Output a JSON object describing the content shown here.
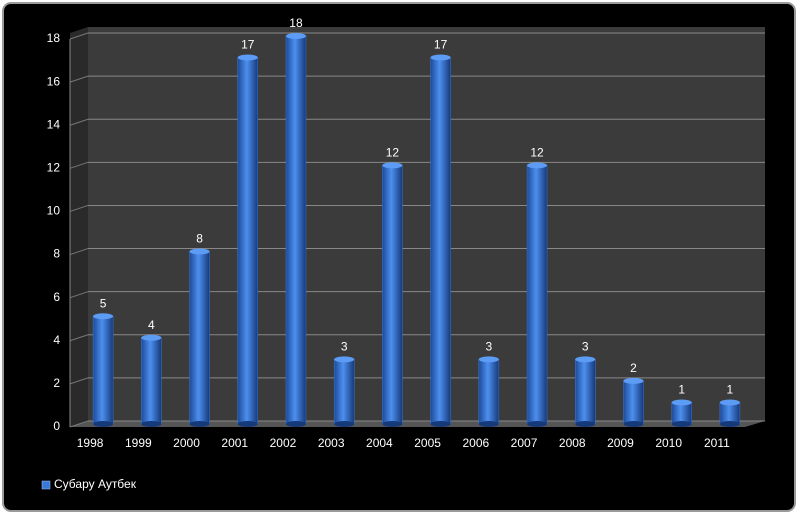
{
  "chart_data": {
    "type": "bar",
    "categories": [
      "1998",
      "1999",
      "2000",
      "2001",
      "2002",
      "2003",
      "2004",
      "2005",
      "2006",
      "2007",
      "2008",
      "2009",
      "2010",
      "2011"
    ],
    "series": [
      {
        "name": "Субару Аутбек",
        "color": "#3a78d8",
        "values": [
          5,
          4,
          8,
          17,
          18,
          3,
          12,
          17,
          3,
          12,
          3,
          2,
          1,
          1
        ]
      }
    ],
    "ylim": [
      0,
      18
    ],
    "yticks": [
      0,
      2,
      4,
      6,
      8,
      10,
      12,
      14,
      16,
      18
    ],
    "grid": true,
    "legend": "bottom-left",
    "data_labels": true
  }
}
